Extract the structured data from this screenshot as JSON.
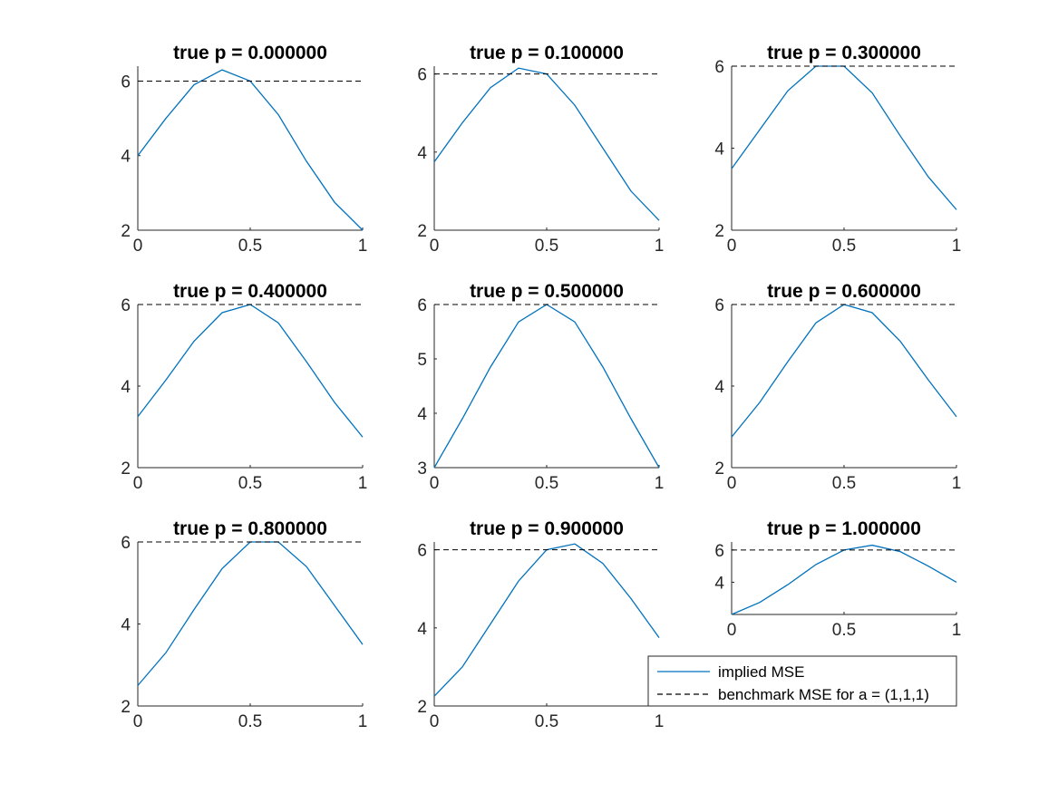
{
  "figure": {
    "background": "#ffffff"
  },
  "colors": {
    "series": "#0072BD",
    "benchmark": "#000000",
    "axis": "#262626"
  },
  "legend": {
    "placement": "below-bottom-right",
    "entries": [
      {
        "label": "implied MSE",
        "style": "solid",
        "color": "#0072BD"
      },
      {
        "label": "benchmark MSE for a = (1,1,1)",
        "style": "dashed",
        "color": "#000000"
      }
    ]
  },
  "chart_data": [
    {
      "type": "line",
      "title": "true p = 0.000000",
      "xlim": [
        0,
        1
      ],
      "ylim": [
        2,
        6.4
      ],
      "xticks": [
        0,
        0.5,
        1
      ],
      "xtick_labels": [
        "0",
        "0.5",
        "1"
      ],
      "yticks": [
        2,
        4,
        6
      ],
      "ytick_labels": [
        "2",
        "4",
        "6"
      ],
      "x": [
        0,
        0.125,
        0.25,
        0.375,
        0.5,
        0.625,
        0.75,
        0.875,
        1
      ],
      "series": [
        {
          "name": "implied MSE",
          "values": [
            4.0,
            5.0,
            5.9,
            6.3,
            6.0,
            5.1,
            3.85,
            2.75,
            2.0
          ]
        },
        {
          "name": "benchmark MSE for a = (1,1,1)",
          "values": [
            6,
            6,
            6,
            6,
            6,
            6,
            6,
            6,
            6
          ]
        }
      ]
    },
    {
      "type": "line",
      "title": "true p = 0.100000",
      "xlim": [
        0,
        1
      ],
      "ylim": [
        2,
        6.2
      ],
      "xticks": [
        0,
        0.5,
        1
      ],
      "xtick_labels": [
        "0",
        "0.5",
        "1"
      ],
      "yticks": [
        2,
        4,
        6
      ],
      "ytick_labels": [
        "2",
        "4",
        "6"
      ],
      "x": [
        0,
        0.125,
        0.25,
        0.375,
        0.5,
        0.625,
        0.75,
        0.875,
        1
      ],
      "series": [
        {
          "name": "implied MSE",
          "values": [
            3.75,
            4.75,
            5.65,
            6.15,
            6.0,
            5.2,
            4.1,
            3.0,
            2.25
          ]
        },
        {
          "name": "benchmark MSE for a = (1,1,1)",
          "values": [
            6,
            6,
            6,
            6,
            6,
            6,
            6,
            6,
            6
          ]
        }
      ]
    },
    {
      "type": "line",
      "title": "true p = 0.300000",
      "xlim": [
        0,
        1
      ],
      "ylim": [
        2,
        6
      ],
      "xticks": [
        0,
        0.5,
        1
      ],
      "xtick_labels": [
        "0",
        "0.5",
        "1"
      ],
      "yticks": [
        2,
        4,
        6
      ],
      "ytick_labels": [
        "2",
        "4",
        "6"
      ],
      "x": [
        0,
        0.125,
        0.25,
        0.375,
        0.5,
        0.625,
        0.75,
        0.875,
        1
      ],
      "series": [
        {
          "name": "implied MSE",
          "values": [
            3.5,
            4.45,
            5.4,
            6.0,
            6.0,
            5.35,
            4.3,
            3.3,
            2.5
          ]
        },
        {
          "name": "benchmark MSE for a = (1,1,1)",
          "values": [
            6,
            6,
            6,
            6,
            6,
            6,
            6,
            6,
            6
          ]
        }
      ]
    },
    {
      "type": "line",
      "title": "true p = 0.400000",
      "xlim": [
        0,
        1
      ],
      "ylim": [
        2,
        6
      ],
      "xticks": [
        0,
        0.5,
        1
      ],
      "xtick_labels": [
        "0",
        "0.5",
        "1"
      ],
      "yticks": [
        2,
        4,
        6
      ],
      "ytick_labels": [
        "2",
        "4",
        "6"
      ],
      "x": [
        0,
        0.125,
        0.25,
        0.375,
        0.5,
        0.625,
        0.75,
        0.875,
        1
      ],
      "series": [
        {
          "name": "implied MSE",
          "values": [
            3.25,
            4.15,
            5.1,
            5.8,
            6.0,
            5.55,
            4.6,
            3.6,
            2.75
          ]
        },
        {
          "name": "benchmark MSE for a = (1,1,1)",
          "values": [
            6,
            6,
            6,
            6,
            6,
            6,
            6,
            6,
            6
          ]
        }
      ]
    },
    {
      "type": "line",
      "title": "true p = 0.500000",
      "xlim": [
        0,
        1
      ],
      "ylim": [
        3,
        6
      ],
      "xticks": [
        0,
        0.5,
        1
      ],
      "xtick_labels": [
        "0",
        "0.5",
        "1"
      ],
      "yticks": [
        3,
        4,
        5,
        6
      ],
      "ytick_labels": [
        "3",
        "4",
        "5",
        "6"
      ],
      "x": [
        0,
        0.125,
        0.25,
        0.375,
        0.5,
        0.625,
        0.75,
        0.875,
        1
      ],
      "series": [
        {
          "name": "implied MSE",
          "values": [
            3.0,
            3.9,
            4.85,
            5.68,
            6.0,
            5.68,
            4.85,
            3.9,
            3.0
          ]
        },
        {
          "name": "benchmark MSE for a = (1,1,1)",
          "values": [
            6,
            6,
            6,
            6,
            6,
            6,
            6,
            6,
            6
          ]
        }
      ]
    },
    {
      "type": "line",
      "title": "true p = 0.600000",
      "xlim": [
        0,
        1
      ],
      "ylim": [
        2,
        6
      ],
      "xticks": [
        0,
        0.5,
        1
      ],
      "xtick_labels": [
        "0",
        "0.5",
        "1"
      ],
      "yticks": [
        2,
        4,
        6
      ],
      "ytick_labels": [
        "2",
        "4",
        "6"
      ],
      "x": [
        0,
        0.125,
        0.25,
        0.375,
        0.5,
        0.625,
        0.75,
        0.875,
        1
      ],
      "series": [
        {
          "name": "implied MSE",
          "values": [
            2.75,
            3.6,
            4.6,
            5.55,
            6.0,
            5.8,
            5.1,
            4.15,
            3.25
          ]
        },
        {
          "name": "benchmark MSE for a = (1,1,1)",
          "values": [
            6,
            6,
            6,
            6,
            6,
            6,
            6,
            6,
            6
          ]
        }
      ]
    },
    {
      "type": "line",
      "title": "true p = 0.800000",
      "xlim": [
        0,
        1
      ],
      "ylim": [
        2,
        6
      ],
      "xticks": [
        0,
        0.5,
        1
      ],
      "xtick_labels": [
        "0",
        "0.5",
        "1"
      ],
      "yticks": [
        2,
        4,
        6
      ],
      "ytick_labels": [
        "2",
        "4",
        "6"
      ],
      "x": [
        0,
        0.125,
        0.25,
        0.375,
        0.5,
        0.625,
        0.75,
        0.875,
        1
      ],
      "series": [
        {
          "name": "implied MSE",
          "values": [
            2.5,
            3.3,
            4.35,
            5.35,
            6.0,
            6.0,
            5.4,
            4.45,
            3.5
          ]
        },
        {
          "name": "benchmark MSE for a = (1,1,1)",
          "values": [
            6,
            6,
            6,
            6,
            6,
            6,
            6,
            6,
            6
          ]
        }
      ]
    },
    {
      "type": "line",
      "title": "true p = 0.900000",
      "xlim": [
        0,
        1
      ],
      "ylim": [
        2,
        6.2
      ],
      "xticks": [
        0,
        0.5,
        1
      ],
      "xtick_labels": [
        "0",
        "0.5",
        "1"
      ],
      "yticks": [
        2,
        4,
        6
      ],
      "ytick_labels": [
        "2",
        "4",
        "6"
      ],
      "x": [
        0,
        0.125,
        0.25,
        0.375,
        0.5,
        0.625,
        0.75,
        0.875,
        1
      ],
      "series": [
        {
          "name": "implied MSE",
          "values": [
            2.25,
            3.0,
            4.1,
            5.2,
            6.0,
            6.15,
            5.65,
            4.75,
            3.75
          ]
        },
        {
          "name": "benchmark MSE for a = (1,1,1)",
          "values": [
            6,
            6,
            6,
            6,
            6,
            6,
            6,
            6,
            6
          ]
        }
      ]
    },
    {
      "type": "line",
      "title": "true p = 1.000000",
      "xlim": [
        0,
        1
      ],
      "ylim": [
        2,
        6.5
      ],
      "xticks": [
        0,
        0.5,
        1
      ],
      "xtick_labels": [
        "0",
        "0.5",
        "1"
      ],
      "yticks": [
        4,
        6
      ],
      "ytick_labels": [
        "4",
        "6"
      ],
      "x": [
        0,
        0.125,
        0.25,
        0.375,
        0.5,
        0.625,
        0.75,
        0.875,
        1
      ],
      "series": [
        {
          "name": "implied MSE",
          "values": [
            2.0,
            2.75,
            3.85,
            5.1,
            6.0,
            6.3,
            5.9,
            5.0,
            4.0
          ]
        },
        {
          "name": "benchmark MSE for a = (1,1,1)",
          "values": [
            6,
            6,
            6,
            6,
            6,
            6,
            6,
            6,
            6
          ]
        }
      ]
    }
  ]
}
